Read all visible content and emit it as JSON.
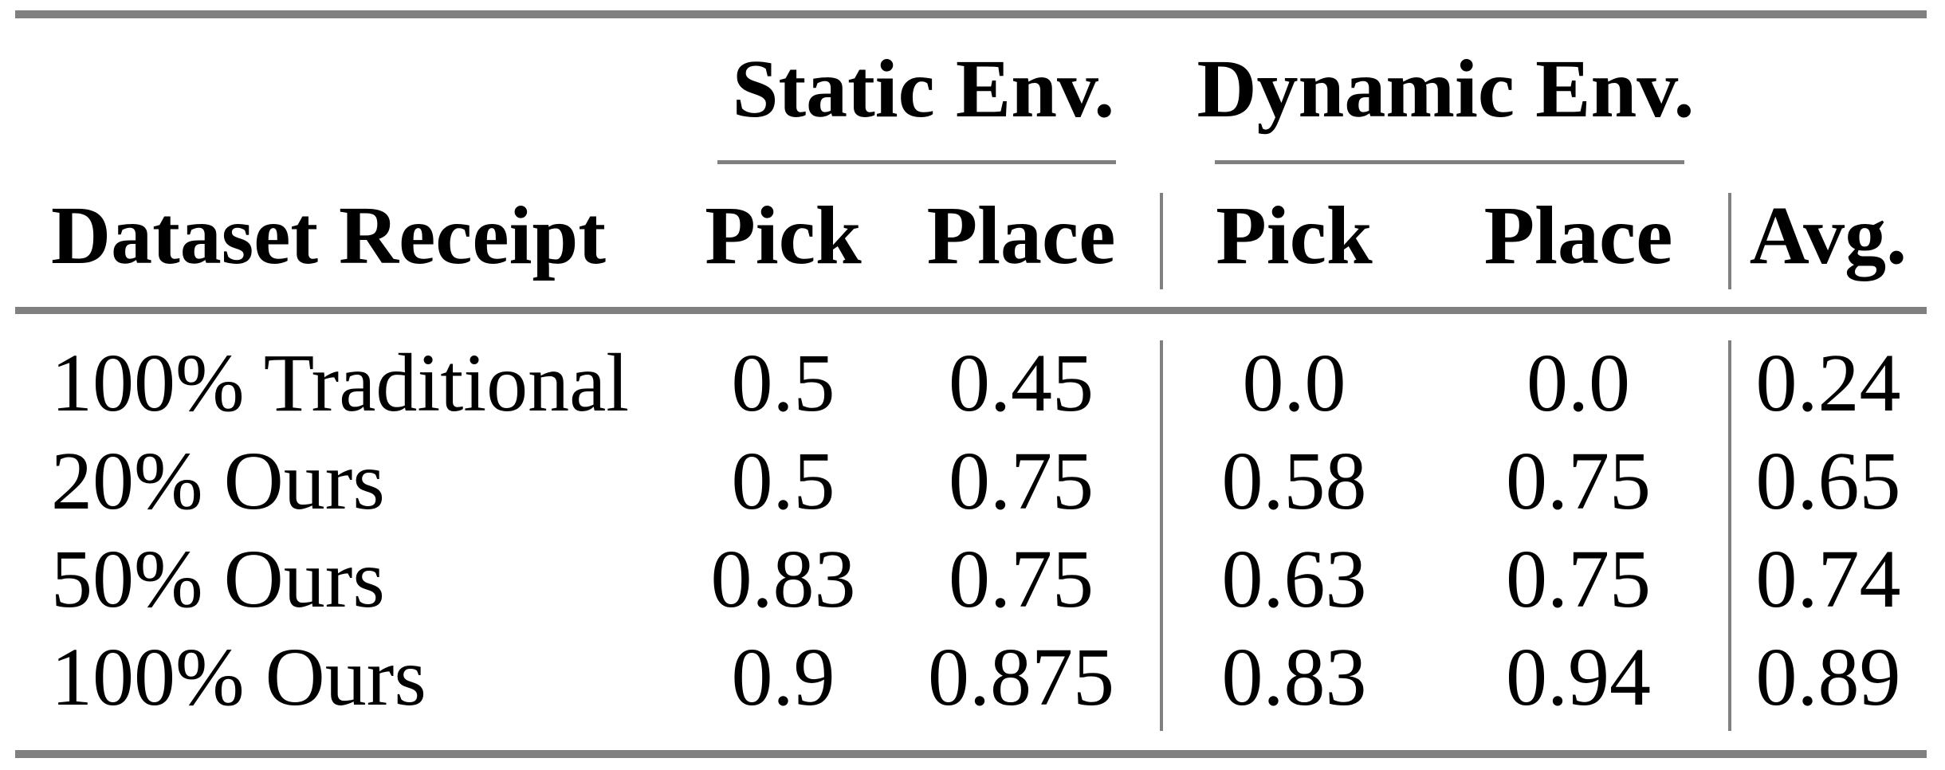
{
  "table": {
    "groups": [
      {
        "label": "Static Env."
      },
      {
        "label": "Dynamic Env."
      }
    ],
    "columns": [
      "Dataset Receipt",
      "Pick",
      "Place",
      "Pick",
      "Place",
      "Avg."
    ],
    "rows": [
      {
        "label": "100% Traditional",
        "values": [
          "0.5",
          "0.45",
          "0.0",
          "0.0",
          "0.24"
        ]
      },
      {
        "label": "20% Ours",
        "values": [
          "0.5",
          "0.75",
          "0.58",
          "0.75",
          "0.65"
        ]
      },
      {
        "label": "50% Ours",
        "values": [
          "0.83",
          "0.75",
          "0.63",
          "0.75",
          "0.74"
        ]
      },
      {
        "label": "100% Ours",
        "values": [
          "0.9",
          "0.875",
          "0.83",
          "0.94",
          "0.89"
        ]
      }
    ],
    "rule_color": "#808080",
    "text_color": "#000000"
  },
  "chart_data": {
    "type": "table",
    "title": "",
    "column_groups": [
      {
        "label": "Static Env.",
        "columns": [
          "Pick",
          "Place"
        ]
      },
      {
        "label": "Dynamic Env.",
        "columns": [
          "Pick",
          "Place"
        ]
      }
    ],
    "columns": [
      "Dataset Receipt",
      "Static Env. Pick",
      "Static Env. Place",
      "Dynamic Env. Pick",
      "Dynamic Env. Place",
      "Avg."
    ],
    "rows": [
      [
        "100% Traditional",
        0.5,
        0.45,
        0.0,
        0.0,
        0.24
      ],
      [
        "20% Ours",
        0.5,
        0.75,
        0.58,
        0.75,
        0.65
      ],
      [
        "50% Ours",
        0.83,
        0.75,
        0.63,
        0.75,
        0.74
      ],
      [
        "100% Ours",
        0.9,
        0.875,
        0.83,
        0.94,
        0.89
      ]
    ]
  }
}
